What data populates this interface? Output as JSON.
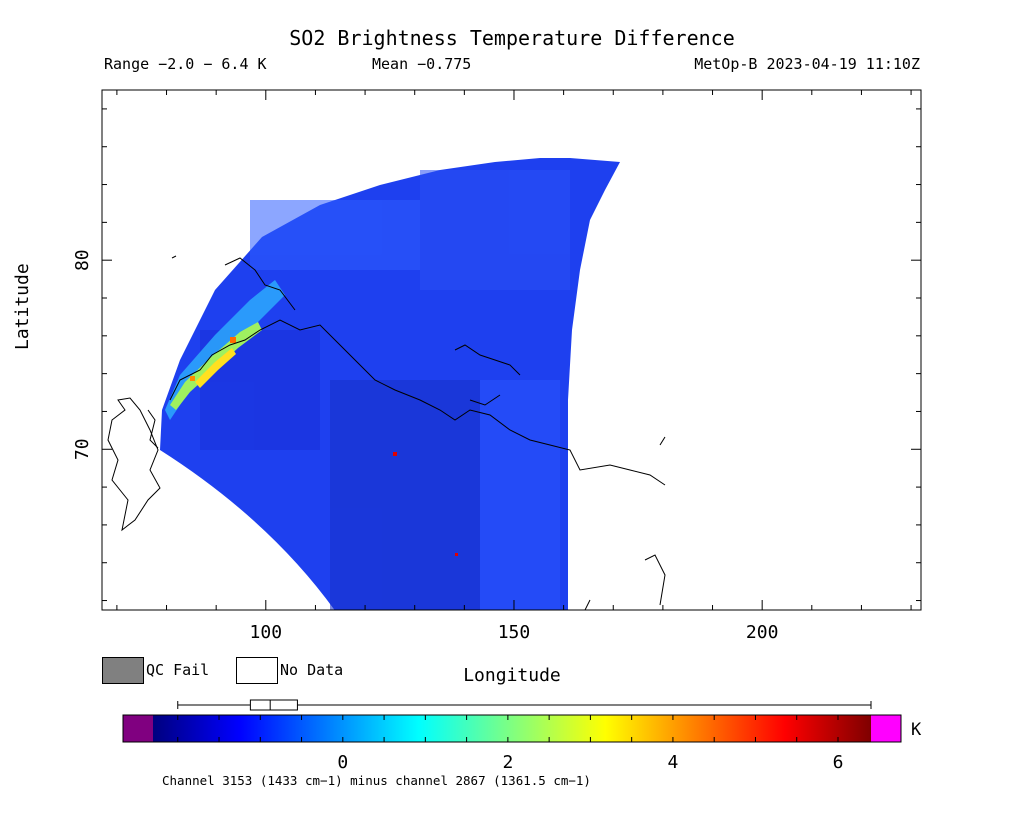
{
  "chart_data": {
    "type": "heatmap",
    "title": "SO2 Brightness Temperature Difference",
    "subtitle_range": "Range −2.0 − 6.4 K",
    "subtitle_mean": "Mean −0.775",
    "subtitle_sat": "MetOp-B 2023-04-19 11:10Z",
    "xlabel": "Longitude",
    "ylabel": "Latitude",
    "xlim": [
      67,
      232
    ],
    "ylim": [
      61.5,
      89
    ],
    "x_ticks": [
      "100",
      "150",
      "200"
    ],
    "x_tick_values": [
      100,
      150,
      200
    ],
    "y_ticks": [
      "70",
      "80"
    ],
    "y_tick_values": [
      70,
      80
    ],
    "colorbar": {
      "min": -2.3,
      "max": 6.4,
      "tick_values": [
        0,
        2,
        4,
        6
      ],
      "tick_labels": [
        "0",
        "2",
        "4",
        "6"
      ],
      "unit": "K",
      "under_color": "#800080",
      "over_color": "#ff00ff"
    },
    "boxplot": {
      "whisker_low": -2.0,
      "q1": -1.12,
      "median": -0.88,
      "q3": -0.55,
      "whisker_high": 6.4
    },
    "legend": {
      "qc_fail": "QC Fail",
      "no_data": "No Data",
      "qc_color": "#808080"
    },
    "footnote": "Channel 3153 (1433 cm−1) minus channel 2867 (1361.5 cm−1)"
  }
}
